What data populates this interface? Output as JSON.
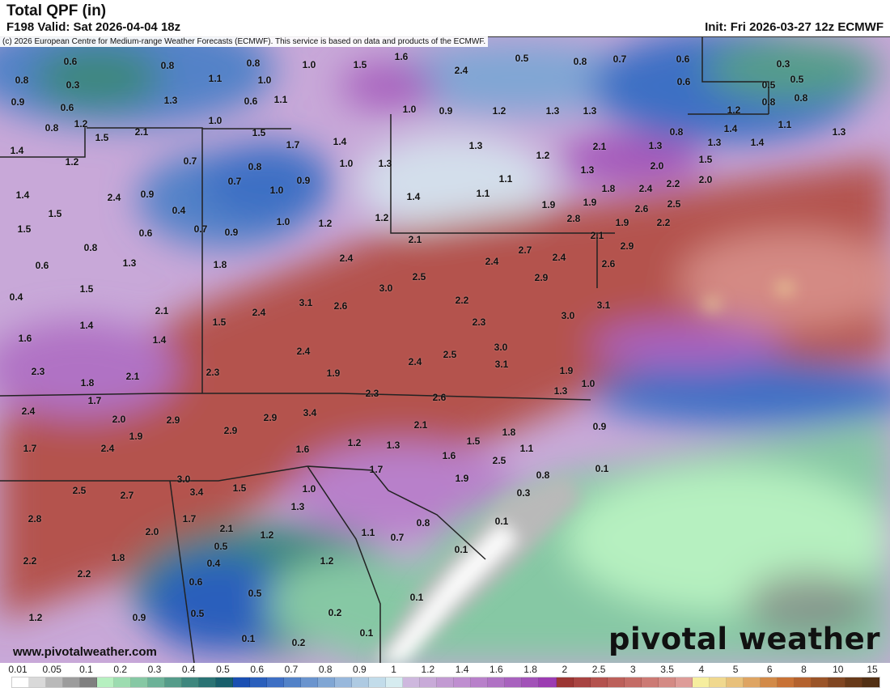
{
  "header": {
    "title": "Total QPF (in)",
    "valid": "F198 Valid: Sat 2026-04-04 18z",
    "init": "Init: Fri 2026-03-27 12z ECMWF"
  },
  "copyright": "(c) 2026 European Centre for Medium-range Weather Forecasts (ECMWF). This service is based on data and products of the ECMWF.",
  "footer": {
    "site": "www.pivotalweather.com",
    "logo": "pivotal weather"
  },
  "legend": {
    "unit": "in",
    "labels": [
      "0.01",
      "0.05",
      "0.1",
      "0.2",
      "0.3",
      "0.4",
      "0.5",
      "0.6",
      "0.7",
      "0.8",
      "0.9",
      "1",
      "1.2",
      "1.4",
      "1.6",
      "1.8",
      "2",
      "2.5",
      "3",
      "3.5",
      "4",
      "5",
      "6",
      "8",
      "10",
      "15"
    ],
    "colors": [
      "#ffffff",
      "#d9d9d9",
      "#b9b9b9",
      "#9c9c9c",
      "#808080",
      "#b6f0c0",
      "#9cdcb0",
      "#86c8a4",
      "#6cb298",
      "#559c8a",
      "#3e877e",
      "#2a7374",
      "#185f6c",
      "#1a4fb2",
      "#2a5fbc",
      "#3e6fc4",
      "#5282c8",
      "#6a94ce",
      "#80a6d4",
      "#98b8dc",
      "#aecae2",
      "#c2dcea",
      "#d6ecf0",
      "#ceb8de",
      "#c8aad8",
      "#c29ad2",
      "#bf8ed0",
      "#b880ca",
      "#b072c4",
      "#a862be",
      "#a252b8",
      "#9c3cb2",
      "#9c3634",
      "#a84442",
      "#b4524e",
      "#bc605a",
      "#c46c66",
      "#cc7a74",
      "#d48a84",
      "#de9c98",
      "#f6ee9e",
      "#f0d88e",
      "#e8c07a",
      "#dea462",
      "#d28a48",
      "#c87236",
      "#b4622e",
      "#9a5428",
      "#804622",
      "#683a1a",
      "#523014"
    ]
  },
  "map_values": [
    "0.6",
    "0.8",
    "0.8",
    "1.0",
    "1.5",
    "1.6",
    "2.4",
    "0.5",
    "0.8",
    "0.7",
    "0.6",
    "0.3",
    "0.8",
    "0.3",
    "1.1",
    "1.0",
    "0.6",
    "0.5",
    "0.5",
    "0.9",
    "0.6",
    "1.3",
    "0.6",
    "1.1",
    "0.8",
    "0.8",
    "0.8",
    "1.2",
    "1.5",
    "2.1",
    "1.0",
    "1.0",
    "0.9",
    "1.2",
    "1.3",
    "1.3",
    "1.2",
    "1.1",
    "1.3",
    "1.4",
    "1.2",
    "1.5",
    "1.7",
    "1.4",
    "0.7",
    "0.8",
    "1.3",
    "2.1",
    "1.3",
    "0.8",
    "1.4",
    "1.3",
    "1.4",
    "1.0",
    "1.3",
    "1.2",
    "1.3",
    "2.0",
    "1.5",
    "2.0",
    "1.4",
    "2.4",
    "0.9",
    "0.7",
    "0.9",
    "1.0",
    "1.1",
    "1.1",
    "1.4",
    "1.8",
    "2.4",
    "2.2",
    "1.9",
    "1.9",
    "2.5",
    "2.6",
    "1.5",
    "0.4",
    "0.6",
    "0.7",
    "0.9",
    "1.0",
    "1.2",
    "1.2",
    "2.8",
    "1.9",
    "2.2",
    "1.5",
    "0.8",
    "0.6",
    "1.3",
    "1.8",
    "2.1",
    "2.4",
    "2.4",
    "2.7",
    "2.4",
    "2.1",
    "2.9",
    "2.6",
    "0.4",
    "1.5",
    "3.0",
    "2.5",
    "2.9",
    "2.2",
    "3.1",
    "2.6",
    "2.4",
    "2.1",
    "3.0",
    "3.1",
    "1.6",
    "1.4",
    "1.4",
    "1.5",
    "2.4",
    "2.3",
    "2.5",
    "2.4",
    "3.0",
    "3.1",
    "1.9",
    "1.9",
    "1.0",
    "1.3",
    "2.3",
    "1.8",
    "2.1",
    "2.3",
    "2.3",
    "2.6",
    "1.7",
    "2.4",
    "2.0",
    "2.9",
    "1.9",
    "2.9",
    "2.9",
    "3.4",
    "2.1",
    "1.8",
    "1.5",
    "0.9",
    "1.7",
    "2.4",
    "1.6",
    "1.2",
    "1.3",
    "1.6",
    "2.5",
    "1.1",
    "1.7",
    "3.0",
    "2.5",
    "2.7",
    "3.4",
    "1.5",
    "1.0",
    "1.9",
    "0.8",
    "0.1",
    "0.3",
    "2.8",
    "1.7",
    "2.0",
    "2.1",
    "1.2",
    "1.3",
    "0.8",
    "1.1",
    "0.7",
    "0.1",
    "0.5",
    "0.1",
    "2.2",
    "1.8",
    "2.2",
    "0.4",
    "1.2",
    "0.6",
    "0.5",
    "0.1",
    "1.2",
    "0.9",
    "0.5",
    "0.2",
    "0.1",
    "0.2",
    "0.1"
  ]
}
